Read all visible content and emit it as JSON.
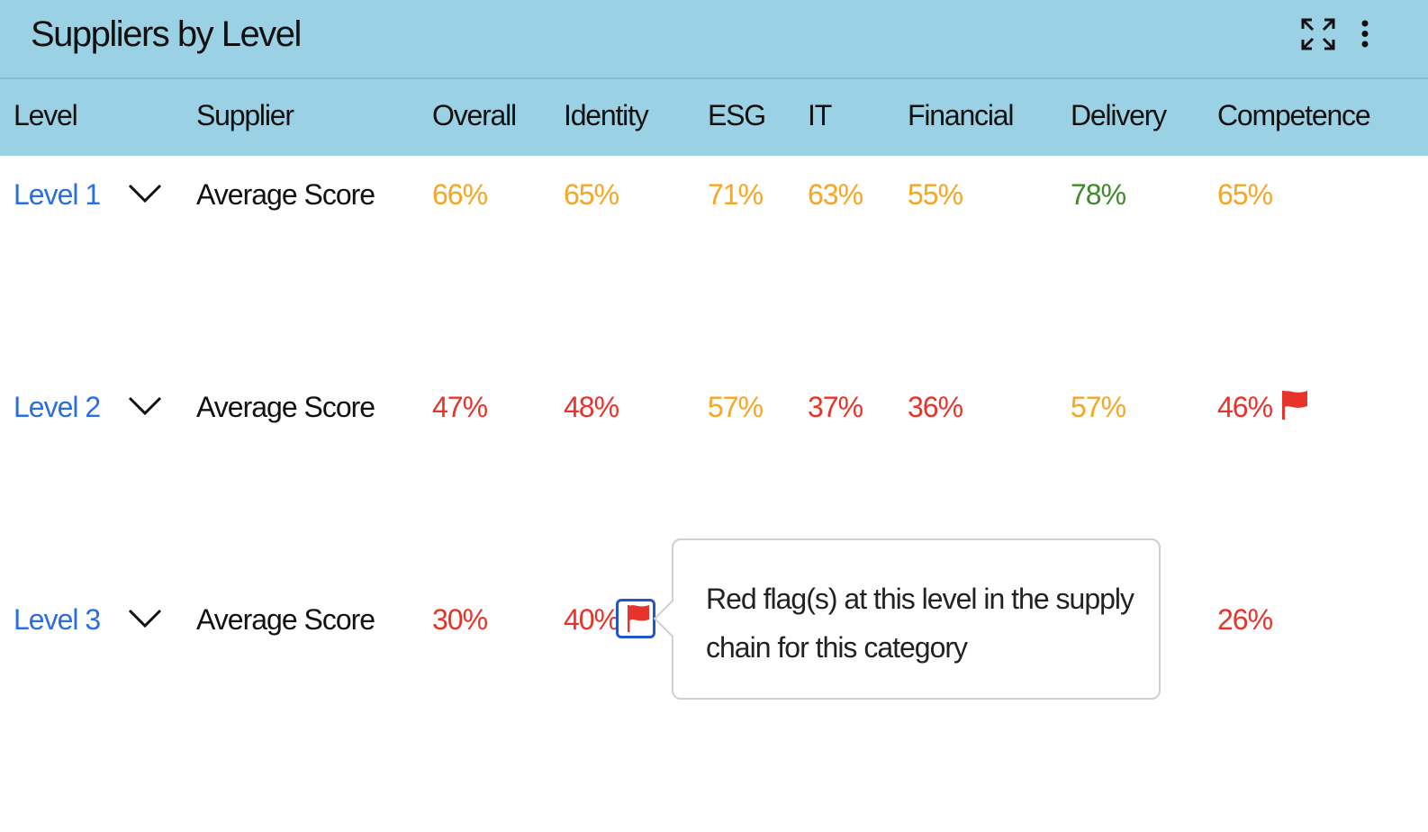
{
  "widget": {
    "title": "Suppliers by Level",
    "icons": [
      "expand-icon",
      "more-vertical-icon"
    ]
  },
  "columns": [
    "Level",
    "Supplier",
    "Overall",
    "Identity",
    "ESG",
    "IT",
    "Financial",
    "Delivery",
    "Competence"
  ],
  "colors": {
    "header_bg": "#9bd1e5",
    "link": "#2a6ee0",
    "red": "#e8332a",
    "orange": "#f5a623",
    "green": "#3e8a2a",
    "focus": "#2356c8"
  },
  "rows": [
    {
      "level": "Level 1",
      "supplier": "Average Score",
      "scores": [
        {
          "value": "66%",
          "status": "orange"
        },
        {
          "value": "65%",
          "status": "orange"
        },
        {
          "value": "71%",
          "status": "orange"
        },
        {
          "value": "63%",
          "status": "orange"
        },
        {
          "value": "55%",
          "status": "orange"
        },
        {
          "value": "78%",
          "status": "green"
        },
        {
          "value": "65%",
          "status": "orange"
        }
      ],
      "flags": []
    },
    {
      "level": "Level 2",
      "supplier": "Average Score",
      "scores": [
        {
          "value": "47%",
          "status": "red"
        },
        {
          "value": "48%",
          "status": "red"
        },
        {
          "value": "57%",
          "status": "orange"
        },
        {
          "value": "37%",
          "status": "red"
        },
        {
          "value": "36%",
          "status": "red"
        },
        {
          "value": "57%",
          "status": "orange"
        },
        {
          "value": "46%",
          "status": "red"
        }
      ],
      "flags": [
        "Competence"
      ]
    },
    {
      "level": "Level 3",
      "supplier": "Average Score",
      "scores": [
        {
          "value": "30%",
          "status": "red"
        },
        {
          "value": "40%",
          "status": "red"
        },
        null,
        null,
        null,
        null,
        {
          "value": "26%",
          "status": "red"
        }
      ],
      "flags": [
        "Identity"
      ]
    }
  ],
  "tooltip": {
    "text": "Red flag(s) at this level in the supply chain for this category"
  }
}
